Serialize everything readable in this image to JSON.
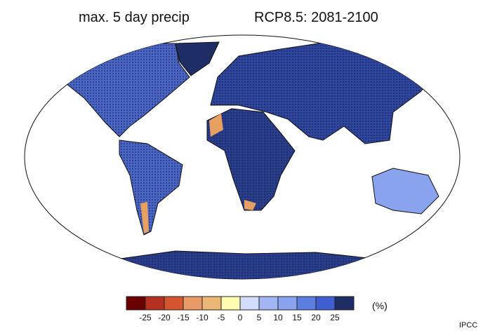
{
  "title": {
    "variable": "max. 5 day precip",
    "scenario": "RCP8.5: 2081-2100"
  },
  "colorbar": {
    "colors": [
      "#6b0000",
      "#b53020",
      "#d5552e",
      "#e89a68",
      "#ecb676",
      "#fdfcb0",
      "#d3dcfb",
      "#a3b5f2",
      "#8aa3ef",
      "#5b7ee0",
      "#3f5fd1",
      "#1f2d66"
    ],
    "tick_labels": [
      "-25",
      "-20",
      "-15",
      "-10",
      "-5",
      "0",
      "5",
      "10",
      "15",
      "20",
      "25"
    ],
    "unit": "(%)"
  },
  "credit": "IPCC",
  "land_colors": {
    "dominant": "#3d5ab8",
    "dark": "#1f2d66",
    "light": "#8aa3ef",
    "dry": "#e89a68"
  }
}
